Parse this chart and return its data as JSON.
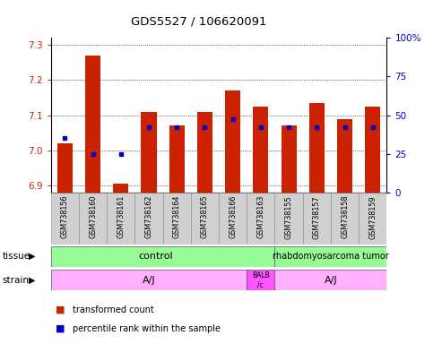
{
  "title": "GDS5527 / 106620091",
  "samples": [
    "GSM738156",
    "GSM738160",
    "GSM738161",
    "GSM738162",
    "GSM738164",
    "GSM738165",
    "GSM738166",
    "GSM738163",
    "GSM738155",
    "GSM738157",
    "GSM738158",
    "GSM738159"
  ],
  "red_values": [
    7.02,
    7.27,
    6.905,
    7.11,
    7.07,
    7.11,
    7.17,
    7.125,
    7.07,
    7.135,
    7.09,
    7.125
  ],
  "blue_values": [
    7.035,
    6.99,
    6.99,
    7.065,
    7.065,
    7.065,
    7.09,
    7.065,
    7.065,
    7.065,
    7.065,
    7.065
  ],
  "ylim_left": [
    6.88,
    7.32
  ],
  "ylim_right": [
    0,
    100
  ],
  "yticks_left": [
    6.9,
    7.0,
    7.1,
    7.2,
    7.3
  ],
  "yticks_right": [
    0,
    25,
    50,
    75,
    100
  ],
  "bar_color": "#CC2200",
  "dot_color": "#0000CC",
  "bar_bottom": 6.88,
  "tick_color_left": "#CC2200",
  "tick_color_right": "#0000CC",
  "legend_red": "transformed count",
  "legend_blue": "percentile rank within the sample",
  "tissue_label1": "control",
  "tissue_label2": "rhabdomyosarcoma tumor",
  "tissue_color": "#98FB98",
  "strain_color1": "#FFB0FF",
  "strain_color2": "#FF55FF",
  "strain_label1": "A/J",
  "strain_label2": "BALB\n/c",
  "strain_label3": "A/J",
  "tissue_split": 8,
  "strain_split1": 7,
  "strain_split2": 8
}
